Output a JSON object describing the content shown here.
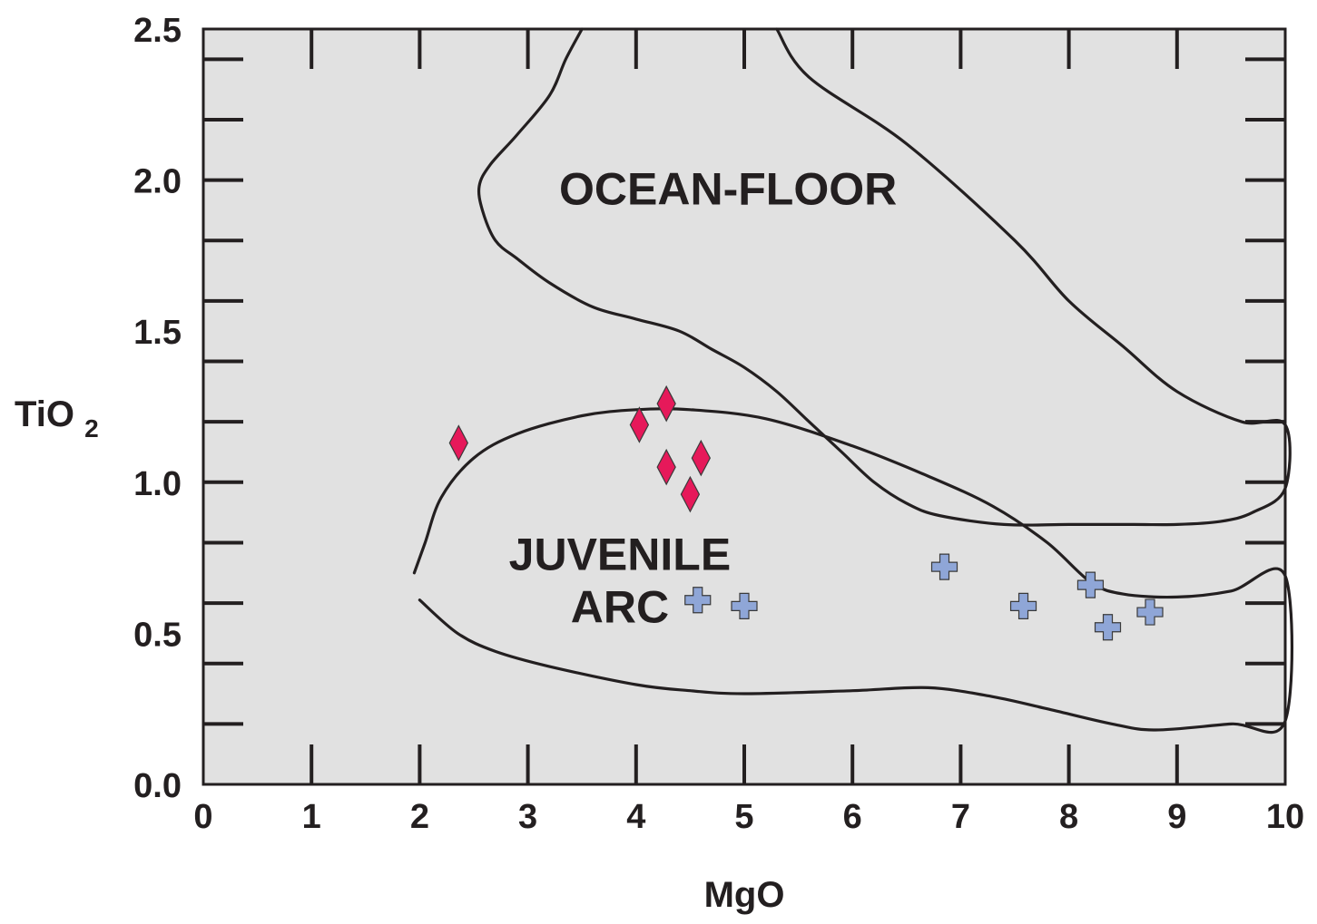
{
  "chart_data": {
    "type": "scatter",
    "xlabel": "MgO",
    "ylabel": {
      "main": "TiO",
      "sub": "2"
    },
    "xlim": [
      0,
      10
    ],
    "ylim": [
      0,
      2.5
    ],
    "x_ticks": [
      {
        "value": 0,
        "label": "0"
      },
      {
        "value": 1,
        "label": "1"
      },
      {
        "value": 2,
        "label": "2"
      },
      {
        "value": 3,
        "label": "3"
      },
      {
        "value": 4,
        "label": "4"
      },
      {
        "value": 5,
        "label": "5"
      },
      {
        "value": 6,
        "label": "6"
      },
      {
        "value": 7,
        "label": "7"
      },
      {
        "value": 8,
        "label": "8"
      },
      {
        "value": 9,
        "label": "9"
      },
      {
        "value": 10,
        "label": "10"
      }
    ],
    "y_ticks": [
      {
        "value": 0.0,
        "label": "0.0"
      },
      {
        "value": 0.5,
        "label": "0.5"
      },
      {
        "value": 1.0,
        "label": "1.0"
      },
      {
        "value": 1.5,
        "label": "1.5"
      },
      {
        "value": 2.0,
        "label": "2.0"
      },
      {
        "value": 2.5,
        "label": "2.5"
      }
    ],
    "y_minor_step": 0.2,
    "plot_background": "#e1e1e1",
    "regions": [
      {
        "label": [
          "OCEAN-FLOOR"
        ],
        "label_at": [
          4.85,
          1.92
        ],
        "boundary": [
          [
            3.5,
            2.5
          ],
          [
            3.35,
            2.4
          ],
          [
            3.2,
            2.28
          ],
          [
            2.9,
            2.15
          ],
          [
            2.65,
            2.05
          ],
          [
            2.55,
            1.98
          ],
          [
            2.58,
            1.9
          ],
          [
            2.7,
            1.8
          ],
          [
            2.9,
            1.74
          ],
          [
            3.2,
            1.66
          ],
          [
            3.6,
            1.58
          ],
          [
            4.0,
            1.54
          ],
          [
            4.4,
            1.5
          ],
          [
            4.7,
            1.44
          ],
          [
            5.0,
            1.38
          ],
          [
            5.3,
            1.3
          ],
          [
            5.6,
            1.2
          ],
          [
            5.9,
            1.1
          ],
          [
            6.2,
            1.0
          ],
          [
            6.5,
            0.93
          ],
          [
            6.8,
            0.89
          ],
          [
            7.4,
            0.86
          ],
          [
            8.0,
            0.86
          ],
          [
            8.6,
            0.86
          ],
          [
            9.0,
            0.86
          ],
          [
            9.4,
            0.87
          ],
          [
            9.7,
            0.9
          ],
          [
            10.0,
            0.98
          ],
          [
            10.0,
            1.19
          ],
          [
            9.6,
            1.2
          ],
          [
            9.0,
            1.3
          ],
          [
            8.5,
            1.45
          ],
          [
            8.0,
            1.6
          ],
          [
            7.5,
            1.8
          ],
          [
            6.5,
            2.12
          ],
          [
            5.6,
            2.34
          ],
          [
            5.3,
            2.5
          ]
        ]
      },
      {
        "label": [
          "JUVENILE",
          "ARC"
        ],
        "label_at": [
          3.85,
          0.71
        ],
        "boundary": [
          [
            1.95,
            0.7
          ],
          [
            2.05,
            0.8
          ],
          [
            2.2,
            0.95
          ],
          [
            2.5,
            1.08
          ],
          [
            2.9,
            1.16
          ],
          [
            3.5,
            1.22
          ],
          [
            4.0,
            1.24
          ],
          [
            4.5,
            1.24
          ],
          [
            5.2,
            1.21
          ],
          [
            6.0,
            1.12
          ],
          [
            6.7,
            1.02
          ],
          [
            7.3,
            0.92
          ],
          [
            7.8,
            0.8
          ],
          [
            8.2,
            0.67
          ],
          [
            8.5,
            0.63
          ],
          [
            9.0,
            0.62
          ],
          [
            9.5,
            0.64
          ],
          [
            10.0,
            0.69
          ],
          [
            10.0,
            0.21
          ],
          [
            9.5,
            0.2
          ],
          [
            8.8,
            0.18
          ],
          [
            8.4,
            0.2
          ],
          [
            7.8,
            0.25
          ],
          [
            7.3,
            0.29
          ],
          [
            6.7,
            0.32
          ],
          [
            6.0,
            0.31
          ],
          [
            5.0,
            0.3
          ],
          [
            4.5,
            0.31
          ],
          [
            4.0,
            0.33
          ],
          [
            3.2,
            0.39
          ],
          [
            2.7,
            0.44
          ],
          [
            2.35,
            0.5
          ],
          [
            2.0,
            0.61
          ]
        ]
      }
    ],
    "series": [
      {
        "marker": "diamond",
        "color": "#e6195a",
        "points": [
          [
            2.36,
            1.13
          ],
          [
            4.03,
            1.19
          ],
          [
            4.28,
            1.26
          ],
          [
            4.28,
            1.05
          ],
          [
            4.6,
            1.08
          ],
          [
            4.5,
            0.96
          ]
        ]
      },
      {
        "marker": "cross",
        "color": "#8fa6d7",
        "points": [
          [
            4.57,
            0.61
          ],
          [
            5.0,
            0.59
          ],
          [
            6.85,
            0.72
          ],
          [
            7.58,
            0.59
          ],
          [
            8.2,
            0.66
          ],
          [
            8.36,
            0.52
          ],
          [
            8.75,
            0.57
          ]
        ]
      }
    ]
  }
}
